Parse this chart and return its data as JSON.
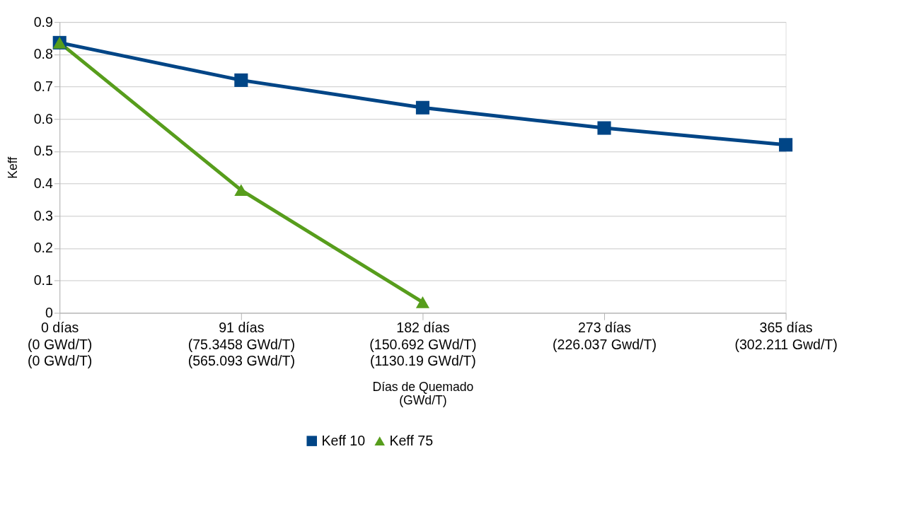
{
  "chart_data": {
    "type": "line",
    "categories": [
      "0 días\n(0 GWd/T)\n(0 GWd/T)",
      "91 días\n(75.3458 GWd/T)\n(565.093 GWd/T)",
      "182 días\n(150.692 GWd/T)\n(1130.19 GWd/T)",
      "273 días\n(226.037 Gwd/T)",
      "365 días\n(302.211 Gwd/T)"
    ],
    "xlabel": "Días de Quemado\n(GWd/T)",
    "ylabel": "Keff",
    "series": [
      {
        "name": "Keff 10",
        "color": "#004586",
        "marker": "square",
        "values": [
          0.836,
          0.72,
          0.635,
          0.572,
          0.52
        ]
      },
      {
        "name": "Keff 75",
        "color": "#579d1c",
        "marker": "triangle",
        "values": [
          0.836,
          0.38,
          0.033,
          null,
          null
        ]
      }
    ],
    "ylim": [
      0,
      0.9
    ],
    "yticks": [
      0,
      0.1,
      0.2,
      0.3,
      0.4,
      0.5,
      0.6,
      0.7,
      0.8,
      0.9
    ],
    "grid": "y",
    "legend": "bottom",
    "line_style": "solid"
  }
}
